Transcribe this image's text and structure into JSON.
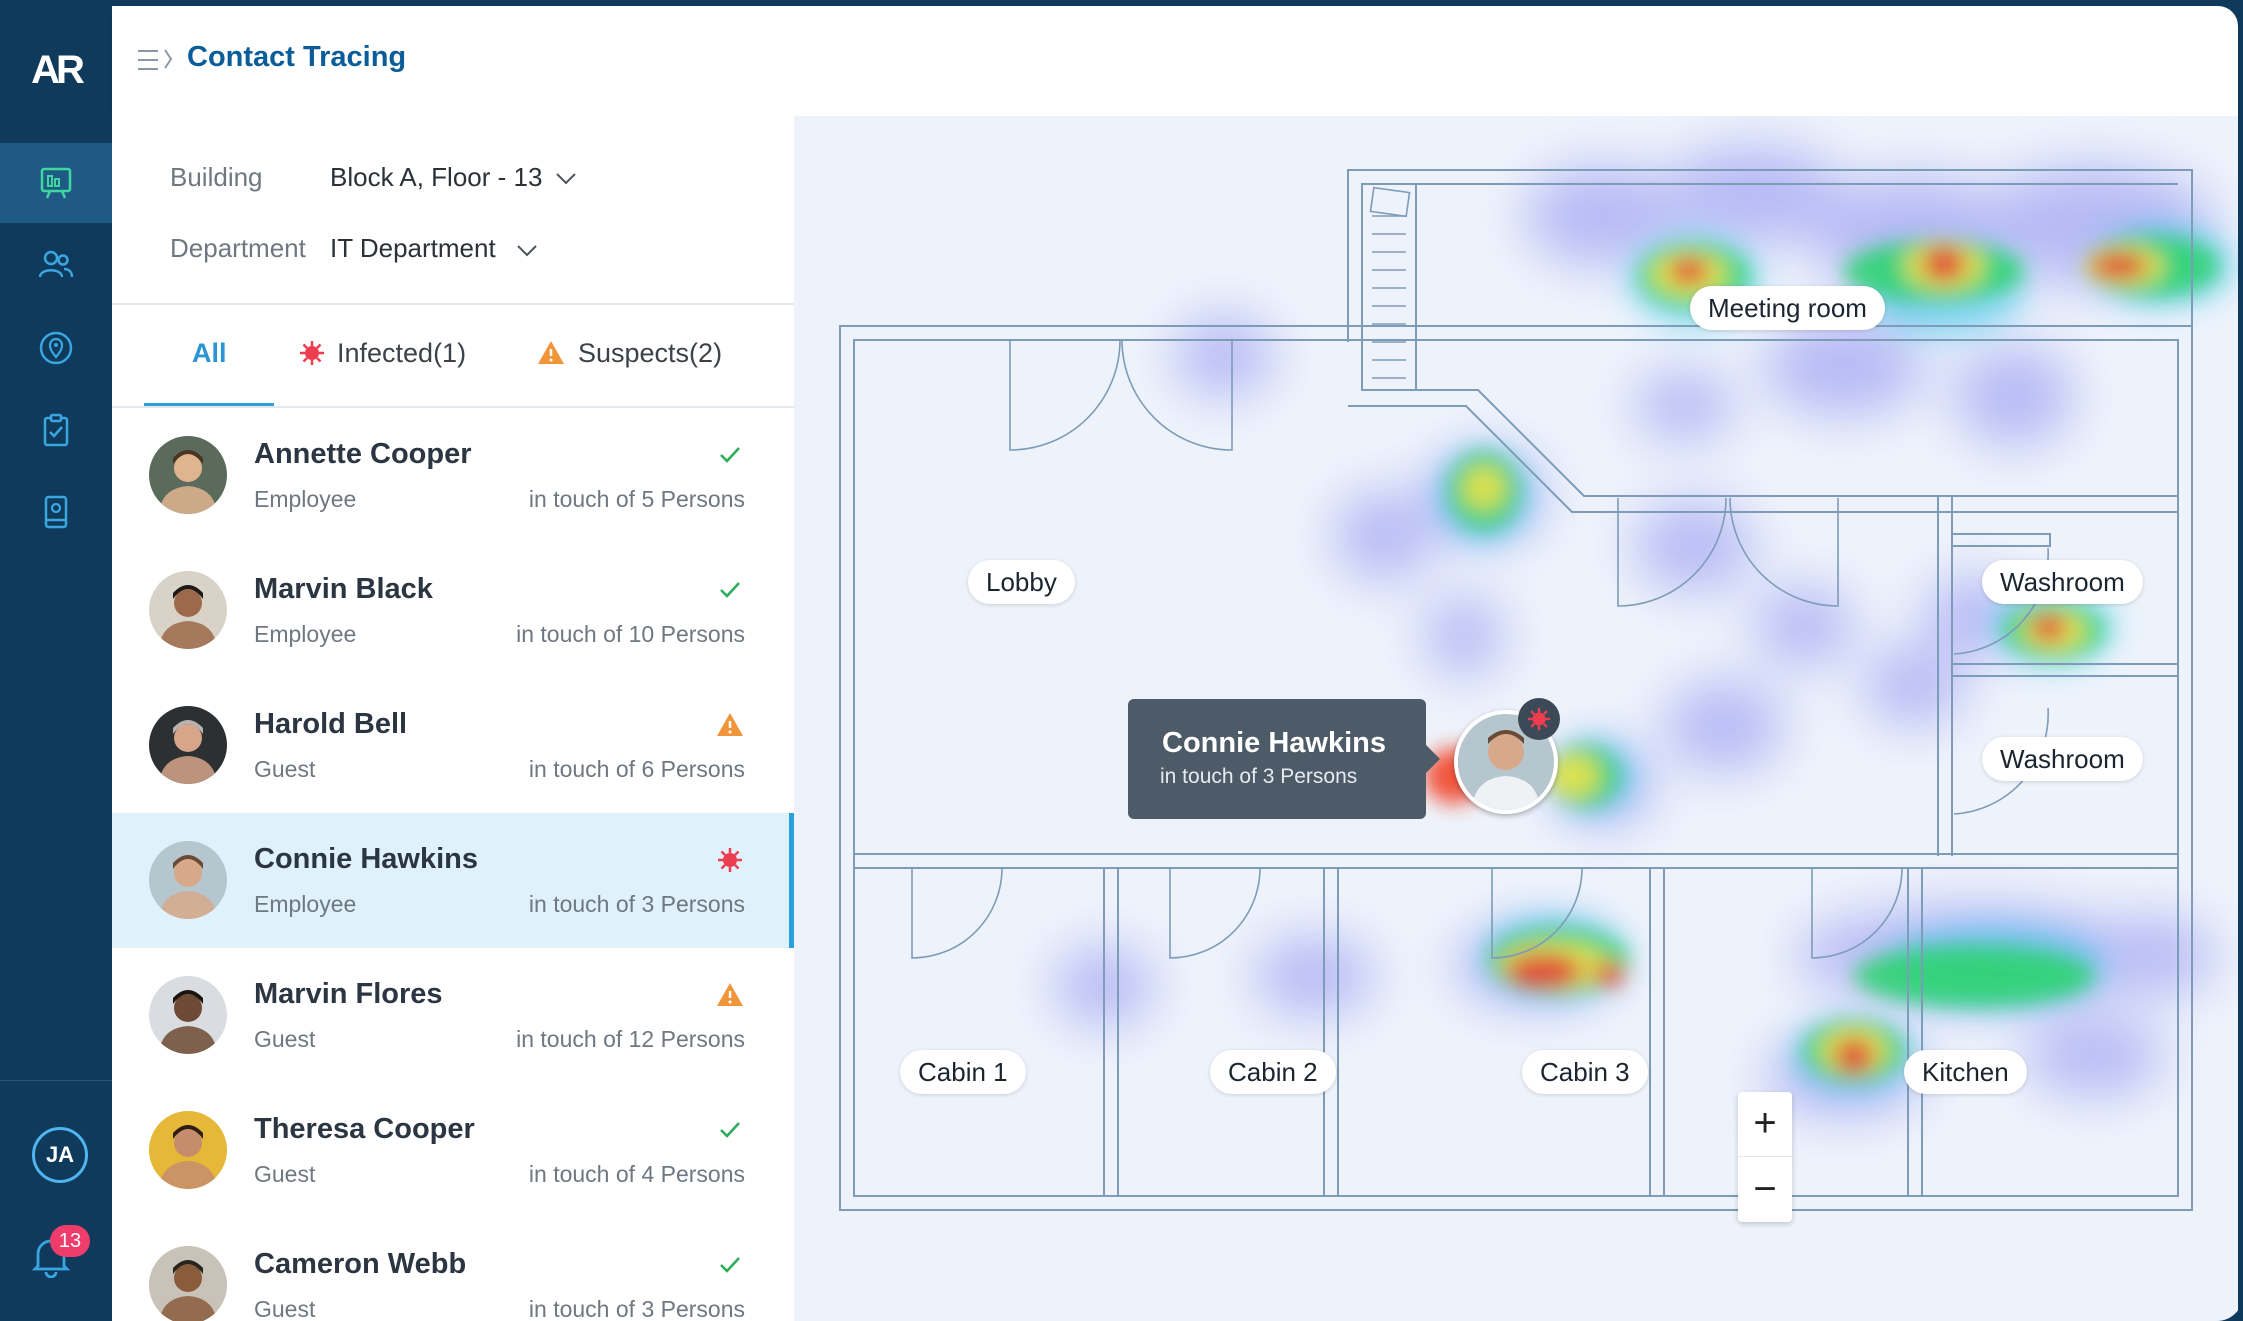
{
  "app": {
    "logo": "AR",
    "title": "Contact Tracing"
  },
  "sidebar": {
    "items": [
      {
        "icon": "dashboard-icon",
        "active": true
      },
      {
        "icon": "users-icon",
        "active": false
      },
      {
        "icon": "location-icon",
        "active": false
      },
      {
        "icon": "clipboard-check-icon",
        "active": false
      },
      {
        "icon": "device-icon",
        "active": false
      }
    ],
    "user_initials": "JA",
    "notifications": "13"
  },
  "filters": {
    "building_label": "Building",
    "building_value": "Block A, Floor - 13",
    "department_label": "Department",
    "department_value": "IT Department"
  },
  "tabs": [
    {
      "label": "All",
      "active": true
    },
    {
      "label": "Infected(1)",
      "active": false
    },
    {
      "label": "Suspects(2)",
      "active": false
    }
  ],
  "people": [
    {
      "name": "Annette Cooper",
      "role": "Employee",
      "touch": "in touch of 5 Persons",
      "status": "safe"
    },
    {
      "name": "Marvin Black",
      "role": "Employee",
      "touch": "in touch of 10 Persons",
      "status": "safe"
    },
    {
      "name": "Harold Bell",
      "role": "Guest",
      "touch": "in touch of 6 Persons",
      "status": "suspect"
    },
    {
      "name": "Connie Hawkins",
      "role": "Employee",
      "touch": "in touch of 3 Persons",
      "status": "infected"
    },
    {
      "name": "Marvin Flores",
      "role": "Guest",
      "touch": "in touch of 12 Persons",
      "status": "suspect"
    },
    {
      "name": "Theresa Cooper",
      "role": "Guest",
      "touch": "in touch of 4 Persons",
      "status": "safe"
    },
    {
      "name": "Cameron Webb",
      "role": "Guest",
      "touch": "in touch of 3 Persons",
      "status": "safe"
    }
  ],
  "map": {
    "rooms": [
      "Meeting room",
      "Lobby",
      "Washroom",
      "Washroom",
      "Cabin 1",
      "Cabin 2",
      "Cabin 3",
      "Kitchen"
    ],
    "tooltip_name": "Connie Hawkins",
    "tooltip_sub": "in touch of 3 Persons",
    "zoom_in": "+",
    "zoom_out": "−"
  },
  "colors": {
    "sidebar": "#0f3a5c",
    "accent": "#2aa0dc",
    "safe": "#2eae5d",
    "suspect": "#f0953a",
    "infected": "#ee3d4f"
  }
}
